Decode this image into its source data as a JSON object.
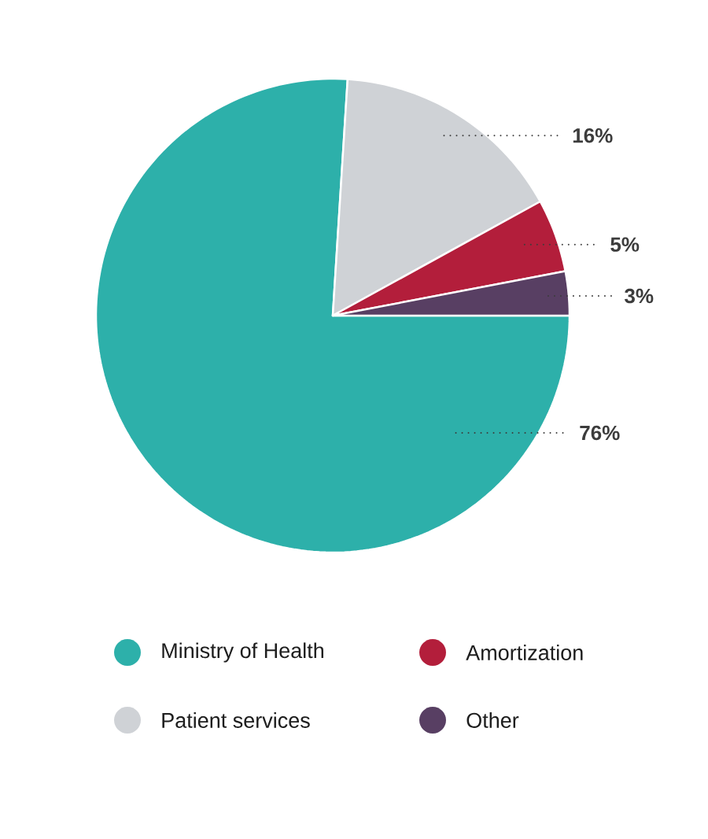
{
  "chart_data": {
    "type": "pie",
    "categories": [
      "Ministry of Health",
      "Patient services",
      "Amortization",
      "Other"
    ],
    "values": [
      76,
      16,
      5,
      3
    ],
    "colors": [
      "#2db0aa",
      "#cfd2d6",
      "#b31e3b",
      "#583f63"
    ],
    "value_labels": [
      "76%",
      "16%",
      "5%",
      "3%"
    ],
    "legend": "bottom"
  }
}
